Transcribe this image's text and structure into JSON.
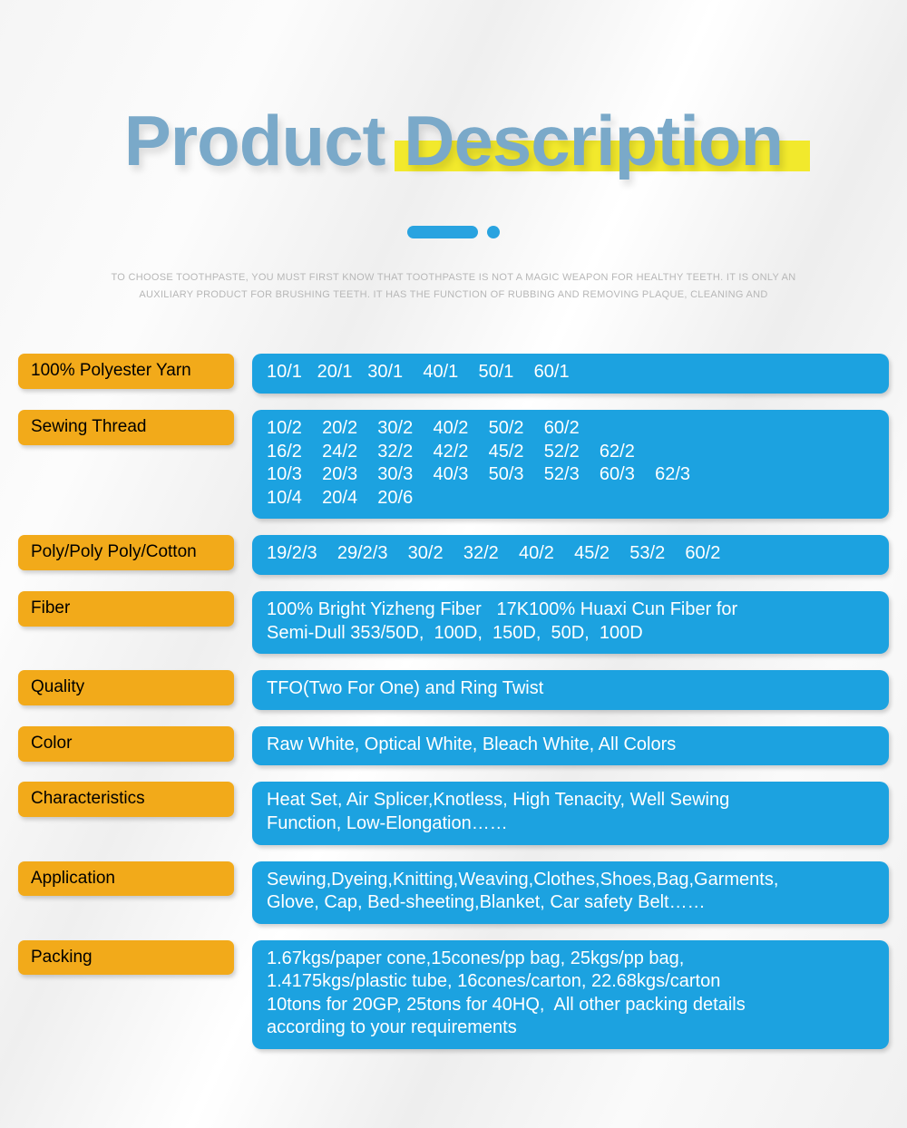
{
  "header": {
    "title_word1": "Product",
    "title_word2": "Description",
    "subtext": "TO CHOOSE TOOTHPASTE, YOU MUST FIRST KNOW THAT TOOTHPASTE IS NOT A MAGIC WEAPON FOR HEALTHY TEETH. IT IS ONLY\nAN AUXILIARY PRODUCT FOR BRUSHING TEETH. IT HAS THE FUNCTION OF RUBBING AND REMOVING PLAQUE, CLEANING AND"
  },
  "colors": {
    "title": "#7aa9c9",
    "highlight": "#f2e92c",
    "accent": "#29a3e0",
    "label_bg": "#f2aa1a",
    "label_text": "#000000",
    "value_bg": "#1ca2e0",
    "value_text": "#ffffff",
    "subtext": "#b7b7b7"
  },
  "rows": [
    {
      "label": "100% Polyester Yarn",
      "value": "10/1   20/1   30/1    40/1    50/1    60/1"
    },
    {
      "label": "Sewing Thread",
      "value": "10/2    20/2    30/2    40/2    50/2    60/2\n16/2    24/2    32/2    42/2    45/2    52/2    62/2\n10/3    20/3    30/3    40/3    50/3    52/3    60/3    62/3\n10/4    20/4    20/6"
    },
    {
      "label": "Poly/Poly Poly/Cotton",
      "value": "19/2/3    29/2/3    30/2    32/2    40/2    45/2    53/2    60/2"
    },
    {
      "label": "Fiber",
      "value": "100% Bright Yizheng Fiber   17K100% Huaxi Cun Fiber for\nSemi-Dull 353/50D,  100D,  150D,  50D,  100D"
    },
    {
      "label": "Quality",
      "value": "TFO(Two For One) and Ring Twist"
    },
    {
      "label": "Color",
      "value": "Raw White, Optical White, Bleach White, All Colors"
    },
    {
      "label": "Characteristics",
      "value": "Heat Set, Air Splicer,Knotless, High Tenacity, Well Sewing\nFunction, Low-Elongation……"
    },
    {
      "label": "Application",
      "value": "Sewing,Dyeing,Knitting,Weaving,Clothes,Shoes,Bag,Garments,\nGlove, Cap, Bed-sheeting,Blanket, Car safety Belt……"
    },
    {
      "label": "Packing",
      "value": "1.67kgs/paper cone,15cones/pp bag, 25kgs/pp bag,\n1.4175kgs/plastic tube, 16cones/carton, 22.68kgs/carton\n10tons for 20GP, 25tons for 40HQ,  All other packing details\naccording to your requirements"
    }
  ]
}
